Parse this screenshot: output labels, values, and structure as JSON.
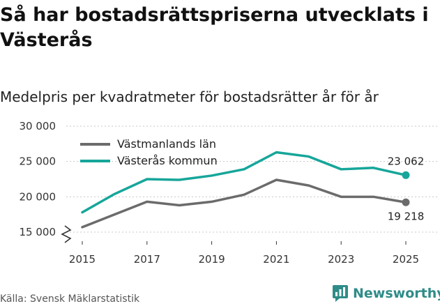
{
  "title": "Så har bostadsrättspriserna utvecklats i Västerås",
  "subtitle": "Medelpris per kvadratmeter för bostadsrätter år för år",
  "source": "Källa: Svensk Mäklarstatistik",
  "brand": "Newsworthy",
  "colors": {
    "lan": "#6b6b6b",
    "kommun": "#16a69a",
    "grid": "#c8c8c8",
    "brand": "#2f8c88"
  },
  "chart_data": {
    "type": "line",
    "title": "Så har bostadsrättspriserna utvecklats i Västerås",
    "subtitle": "Medelpris per kvadratmeter för bostadsrätter år för år",
    "x": [
      2015,
      2016,
      2017,
      2018,
      2019,
      2020,
      2021,
      2022,
      2023,
      2024,
      2025
    ],
    "x_ticks": [
      "2015",
      "2017",
      "2019",
      "2021",
      "2023",
      "2025"
    ],
    "y_ticks": [
      "15 000",
      "20 000",
      "25 000",
      "30 000"
    ],
    "ylim": [
      15000,
      30000
    ],
    "series": [
      {
        "name": "Västmanlands län",
        "color": "#6b6b6b",
        "values": [
          15700,
          17500,
          19300,
          18800,
          19300,
          20300,
          22400,
          21600,
          20000,
          20000,
          19218
        ],
        "end_label": "19 218"
      },
      {
        "name": "Västerås kommun",
        "color": "#16a69a",
        "values": [
          17800,
          20400,
          22500,
          22400,
          23000,
          23900,
          26300,
          25700,
          23900,
          24100,
          23062
        ],
        "end_label": "23 062"
      }
    ],
    "legend": "top-left",
    "grid": true
  }
}
